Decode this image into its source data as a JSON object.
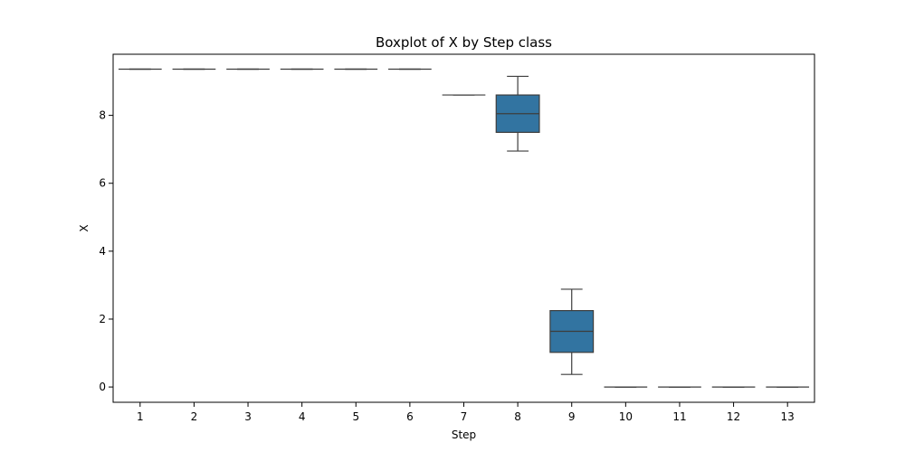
{
  "chart_data": {
    "type": "boxplot",
    "title": "Boxplot of X by Step class",
    "xlabel": "Step",
    "ylabel": "X",
    "ylim": [
      -0.45,
      9.8
    ],
    "yticks": [
      0,
      2,
      4,
      6,
      8
    ],
    "grid": false,
    "legend": "none",
    "box_color": "#3274a1",
    "line_color": "#3d3d3d",
    "categories": [
      "1",
      "2",
      "3",
      "4",
      "5",
      "6",
      "7",
      "8",
      "9",
      "10",
      "11",
      "12",
      "13"
    ],
    "boxes": [
      {
        "category": "1",
        "whisker_low": 9.36,
        "q1": 9.36,
        "median": 9.36,
        "q3": 9.36,
        "whisker_high": 9.36
      },
      {
        "category": "2",
        "whisker_low": 9.36,
        "q1": 9.36,
        "median": 9.36,
        "q3": 9.36,
        "whisker_high": 9.36
      },
      {
        "category": "3",
        "whisker_low": 9.36,
        "q1": 9.36,
        "median": 9.36,
        "q3": 9.36,
        "whisker_high": 9.36
      },
      {
        "category": "4",
        "whisker_low": 9.36,
        "q1": 9.36,
        "median": 9.36,
        "q3": 9.36,
        "whisker_high": 9.36
      },
      {
        "category": "5",
        "whisker_low": 9.36,
        "q1": 9.36,
        "median": 9.36,
        "q3": 9.36,
        "whisker_high": 9.36
      },
      {
        "category": "6",
        "whisker_low": 9.36,
        "q1": 9.36,
        "median": 9.36,
        "q3": 9.36,
        "whisker_high": 9.36
      },
      {
        "category": "7",
        "whisker_low": 8.6,
        "q1": 8.6,
        "median": 8.6,
        "q3": 8.6,
        "whisker_high": 8.6
      },
      {
        "category": "8",
        "whisker_low": 6.95,
        "q1": 7.5,
        "median": 8.05,
        "q3": 8.6,
        "whisker_high": 9.15
      },
      {
        "category": "9",
        "whisker_low": 0.37,
        "q1": 1.02,
        "median": 1.64,
        "q3": 2.25,
        "whisker_high": 2.88
      },
      {
        "category": "10",
        "whisker_low": 0.0,
        "q1": 0.0,
        "median": 0.0,
        "q3": 0.0,
        "whisker_high": 0.0
      },
      {
        "category": "11",
        "whisker_low": 0.0,
        "q1": 0.0,
        "median": 0.0,
        "q3": 0.0,
        "whisker_high": 0.0
      },
      {
        "category": "12",
        "whisker_low": 0.0,
        "q1": 0.0,
        "median": 0.0,
        "q3": 0.0,
        "whisker_high": 0.0
      },
      {
        "category": "13",
        "whisker_low": 0.0,
        "q1": 0.0,
        "median": 0.0,
        "q3": 0.0,
        "whisker_high": 0.0
      }
    ]
  }
}
